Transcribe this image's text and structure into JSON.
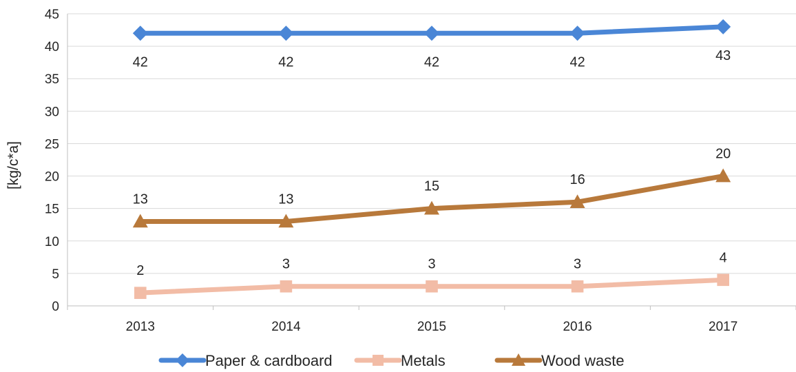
{
  "chart_data": {
    "type": "line",
    "title": "",
    "xlabel": "",
    "ylabel": "[kg/c*a]",
    "ylim": [
      0,
      45
    ],
    "yticks": [
      0,
      5,
      10,
      15,
      20,
      25,
      30,
      35,
      40,
      45
    ],
    "categories": [
      "2013",
      "2014",
      "2015",
      "2016",
      "2017"
    ],
    "grid": "horizontal",
    "legend_position": "bottom",
    "series": [
      {
        "name": "Paper & cardboard",
        "values": [
          42,
          42,
          42,
          42,
          43
        ],
        "color": "#4a86d6",
        "marker": "diamond",
        "label_position": "below"
      },
      {
        "name": "Metals",
        "values": [
          2,
          3,
          3,
          3,
          4
        ],
        "color": "#f2bca6",
        "marker": "square",
        "label_position": "above"
      },
      {
        "name": "Wood waste",
        "values": [
          13,
          13,
          15,
          16,
          20
        ],
        "color": "#b8793b",
        "marker": "triangle",
        "label_position": "above"
      }
    ]
  }
}
